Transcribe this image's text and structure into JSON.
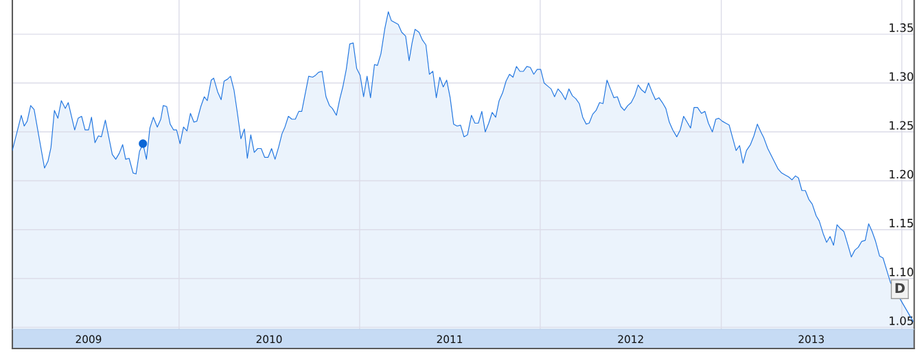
{
  "chart_data": {
    "type": "area",
    "x": [
      "2009-01-29",
      "2009-02-16",
      "2009-02-22",
      "2009-02-28",
      "2009-03-07",
      "2009-03-14",
      "2009-04-04",
      "2009-04-11",
      "2009-04-17",
      "2009-04-24",
      "2009-05-01",
      "2009-05-08",
      "2009-05-16",
      "2009-05-22",
      "2009-06-04",
      "2009-06-11",
      "2009-06-18",
      "2009-06-25",
      "2009-07-02",
      "2009-07-08",
      "2009-07-15",
      "2009-07-22",
      "2009-07-28",
      "2009-08-05",
      "2009-08-19",
      "2009-08-26",
      "2009-09-02",
      "2009-09-09",
      "2009-09-15",
      "2009-09-22",
      "2009-09-30",
      "2009-10-06",
      "2009-10-13",
      "2009-10-20",
      "2009-10-27",
      "2009-11-03",
      "2009-11-10",
      "2009-11-18",
      "2009-11-25",
      "2009-11-30",
      "2009-12-07",
      "2009-12-14",
      "2009-12-21",
      "2009-12-27",
      "2010-01-03",
      "2010-01-10",
      "2010-01-17",
      "2010-01-24",
      "2010-01-31",
      "2010-02-06",
      "2010-02-14",
      "2010-02-21",
      "2010-02-27",
      "2010-03-07",
      "2010-03-12",
      "2010-03-20",
      "2010-03-27",
      "2010-04-02",
      "2010-04-09",
      "2010-04-15",
      "2010-04-22",
      "2010-04-29",
      "2010-05-06",
      "2010-05-13",
      "2010-05-19",
      "2010-05-26",
      "2010-06-02",
      "2010-06-09",
      "2010-06-16",
      "2010-06-23",
      "2010-06-30",
      "2010-07-07",
      "2010-07-14",
      "2010-07-21",
      "2010-07-28",
      "2010-08-03",
      "2010-08-10",
      "2010-08-17",
      "2010-08-24",
      "2010-08-31",
      "2010-09-06",
      "2010-09-13",
      "2010-09-20",
      "2010-09-28",
      "2010-10-04",
      "2010-10-10",
      "2010-10-17",
      "2010-10-25",
      "2010-11-01",
      "2010-11-07",
      "2010-11-15",
      "2010-11-22",
      "2010-11-28",
      "2010-12-05",
      "2010-12-12",
      "2010-12-19",
      "2010-12-26",
      "2011-01-02",
      "2011-01-09",
      "2011-01-16",
      "2011-01-23",
      "2011-01-31",
      "2011-02-06",
      "2011-02-13",
      "2011-02-21",
      "2011-02-28",
      "2011-03-06",
      "2011-03-13",
      "2011-03-20",
      "2011-03-27",
      "2011-04-04",
      "2011-04-11",
      "2011-04-17",
      "2011-04-23",
      "2011-05-01",
      "2011-05-08",
      "2011-05-15",
      "2011-05-22",
      "2011-05-29",
      "2011-06-05",
      "2011-06-12",
      "2011-06-19",
      "2011-06-26",
      "2011-07-03",
      "2011-07-10",
      "2011-07-17",
      "2011-07-24",
      "2011-07-31",
      "2011-08-07",
      "2011-08-15",
      "2011-08-22",
      "2011-08-29",
      "2011-09-05",
      "2011-09-12",
      "2011-09-19",
      "2011-09-26",
      "2011-10-03",
      "2011-10-10",
      "2011-10-17",
      "2011-10-24",
      "2011-10-31",
      "2011-11-07",
      "2011-11-14",
      "2011-11-21",
      "2011-11-28",
      "2011-12-05",
      "2011-12-12",
      "2011-12-19",
      "2011-12-26",
      "2012-01-02",
      "2012-01-09",
      "2012-01-16",
      "2012-01-23",
      "2012-01-30",
      "2012-02-06",
      "2012-02-13",
      "2012-02-21",
      "2012-02-28",
      "2012-03-06",
      "2012-03-13",
      "2012-03-20",
      "2012-03-27",
      "2012-04-03",
      "2012-04-09",
      "2012-04-16",
      "2012-04-23",
      "2012-04-30",
      "2012-05-07",
      "2012-05-15",
      "2012-05-22",
      "2012-05-29",
      "2012-06-05",
      "2012-06-12",
      "2012-06-19",
      "2012-06-26",
      "2012-07-03",
      "2012-07-10",
      "2012-07-17",
      "2012-07-24",
      "2012-07-31",
      "2012-08-07",
      "2012-08-14",
      "2012-08-21",
      "2012-08-28",
      "2012-09-04",
      "2012-09-11",
      "2012-09-18",
      "2012-09-25",
      "2012-10-03",
      "2012-10-10",
      "2012-10-17",
      "2012-10-24",
      "2012-10-31",
      "2012-11-07",
      "2012-11-14",
      "2012-11-22",
      "2012-11-29",
      "2012-12-06",
      "2012-12-14",
      "2012-12-21",
      "2012-12-27",
      "2013-01-03",
      "2013-01-10",
      "2013-01-17",
      "2013-01-24",
      "2013-01-31",
      "2013-02-07",
      "2013-02-14",
      "2013-02-21",
      "2013-03-01",
      "2013-03-08",
      "2013-03-15",
      "2013-03-22",
      "2013-03-28",
      "2013-04-05",
      "2013-04-12",
      "2013-04-19",
      "2013-04-26",
      "2013-05-03",
      "2013-05-10",
      "2013-05-17",
      "2013-05-24",
      "2013-05-31",
      "2013-06-06",
      "2013-06-13",
      "2013-06-20",
      "2013-06-27",
      "2013-07-04",
      "2013-07-12",
      "2013-07-18",
      "2013-07-26",
      "2013-08-02",
      "2013-08-09",
      "2013-08-16",
      "2013-08-23",
      "2013-08-30",
      "2013-09-06",
      "2013-09-13",
      "2013-09-21",
      "2013-09-28",
      "2013-10-05",
      "2013-10-12",
      "2013-10-19",
      "2013-10-26",
      "2013-11-02",
      "2013-11-09",
      "2013-11-17",
      "2013-11-24",
      "2013-12-09",
      "2014-01-24"
    ],
    "series": [
      {
        "color": "#2176e0",
        "values": [
          1.231,
          1.267,
          1.256,
          1.261,
          1.277,
          1.273,
          1.213,
          1.22,
          1.234,
          1.272,
          1.264,
          1.282,
          1.274,
          1.28,
          1.252,
          1.264,
          1.266,
          1.252,
          1.252,
          1.265,
          1.239,
          1.246,
          1.245,
          1.262,
          1.227,
          1.222,
          1.228,
          1.237,
          1.222,
          1.223,
          1.208,
          1.207,
          1.23,
          1.238,
          1.222,
          1.254,
          1.265,
          1.255,
          1.263,
          1.277,
          1.276,
          1.258,
          1.252,
          1.252,
          1.238,
          1.255,
          1.251,
          1.269,
          1.26,
          1.261,
          1.276,
          1.286,
          1.282,
          1.303,
          1.305,
          1.291,
          1.283,
          1.302,
          1.304,
          1.307,
          1.293,
          1.269,
          1.243,
          1.253,
          1.223,
          1.247,
          1.229,
          1.233,
          1.233,
          1.224,
          1.224,
          1.233,
          1.222,
          1.234,
          1.248,
          1.255,
          1.266,
          1.263,
          1.263,
          1.271,
          1.271,
          1.289,
          1.307,
          1.306,
          1.308,
          1.311,
          1.312,
          1.286,
          1.277,
          1.274,
          1.267,
          1.284,
          1.296,
          1.314,
          1.34,
          1.341,
          1.315,
          1.308,
          1.286,
          1.307,
          1.285,
          1.319,
          1.318,
          1.33,
          1.356,
          1.373,
          1.364,
          1.362,
          1.36,
          1.352,
          1.348,
          1.323,
          1.341,
          1.355,
          1.352,
          1.344,
          1.339,
          1.309,
          1.312,
          1.285,
          1.306,
          1.296,
          1.303,
          1.285,
          1.258,
          1.256,
          1.257,
          1.245,
          1.247,
          1.267,
          1.259,
          1.259,
          1.271,
          1.25,
          1.259,
          1.27,
          1.265,
          1.282,
          1.29,
          1.302,
          1.309,
          1.306,
          1.317,
          1.312,
          1.312,
          1.317,
          1.316,
          1.309,
          1.314,
          1.314,
          1.3,
          1.297,
          1.294,
          1.286,
          1.294,
          1.29,
          1.283,
          1.294,
          1.287,
          1.284,
          1.279,
          1.265,
          1.258,
          1.259,
          1.268,
          1.272,
          1.28,
          1.279,
          1.303,
          1.294,
          1.285,
          1.286,
          1.276,
          1.272,
          1.277,
          1.28,
          1.287,
          1.298,
          1.293,
          1.29,
          1.3,
          1.291,
          1.283,
          1.285,
          1.28,
          1.274,
          1.26,
          1.252,
          1.245,
          1.252,
          1.266,
          1.26,
          1.254,
          1.275,
          1.275,
          1.269,
          1.271,
          1.259,
          1.25,
          1.263,
          1.264,
          1.261,
          1.259,
          1.257,
          1.244,
          1.231,
          1.236,
          1.218,
          1.231,
          1.237,
          1.246,
          1.258,
          1.25,
          1.244,
          1.233,
          1.226,
          1.219,
          1.212,
          1.208,
          1.206,
          1.204,
          1.201,
          1.205,
          1.203,
          1.19,
          1.19,
          1.181,
          1.176,
          1.164,
          1.159,
          1.146,
          1.137,
          1.143,
          1.134,
          1.155,
          1.151,
          1.148,
          1.136,
          1.122,
          1.129,
          1.132,
          1.138,
          1.139,
          1.156,
          1.148,
          1.138,
          1.123,
          1.121,
          1.096,
          1.056
        ]
      },
      {
        "type": "scatter",
        "marker": "circle",
        "color": "#0b66d6",
        "x": [
          "2009-10-20"
        ],
        "values": [
          1.238
        ]
      }
    ],
    "xlim": [
      "2009-01-29",
      "2014-01-26"
    ],
    "xticks": [
      {
        "value": "2009-07-02",
        "label": "2009"
      },
      {
        "value": "2010-07-02",
        "label": "2010"
      },
      {
        "value": "2011-07-02",
        "label": "2011"
      },
      {
        "value": "2012-07-02",
        "label": "2012"
      },
      {
        "value": "2013-07-02",
        "label": "2013"
      }
    ],
    "ylim": [
      1.048,
      1.385
    ],
    "yticks": [
      1.05,
      {
        "value": 1.1,
        "label": "1.10"
      },
      1.15,
      {
        "value": 1.2,
        "label": "1.20"
      },
      1.25,
      {
        "value": 1.3,
        "label": "1.30"
      },
      1.35
    ],
    "grid": "y",
    "ref_lines": [
      {
        "axis": "x",
        "value": "2010-01-01",
        "color": "#dcdce8"
      },
      {
        "axis": "x",
        "value": "2011-01-01",
        "color": "#dcdce8"
      },
      {
        "axis": "x",
        "value": "2012-01-01",
        "color": "#dcdce8"
      },
      {
        "axis": "x",
        "value": "2013-01-01",
        "color": "#dcdce8"
      },
      {
        "axis": "x",
        "value": "2014-01-01",
        "color": "#dcdce8"
      }
    ],
    "annotations": [
      {
        "text": "D",
        "x": "2013-12-28",
        "y": 1.089
      }
    ]
  }
}
